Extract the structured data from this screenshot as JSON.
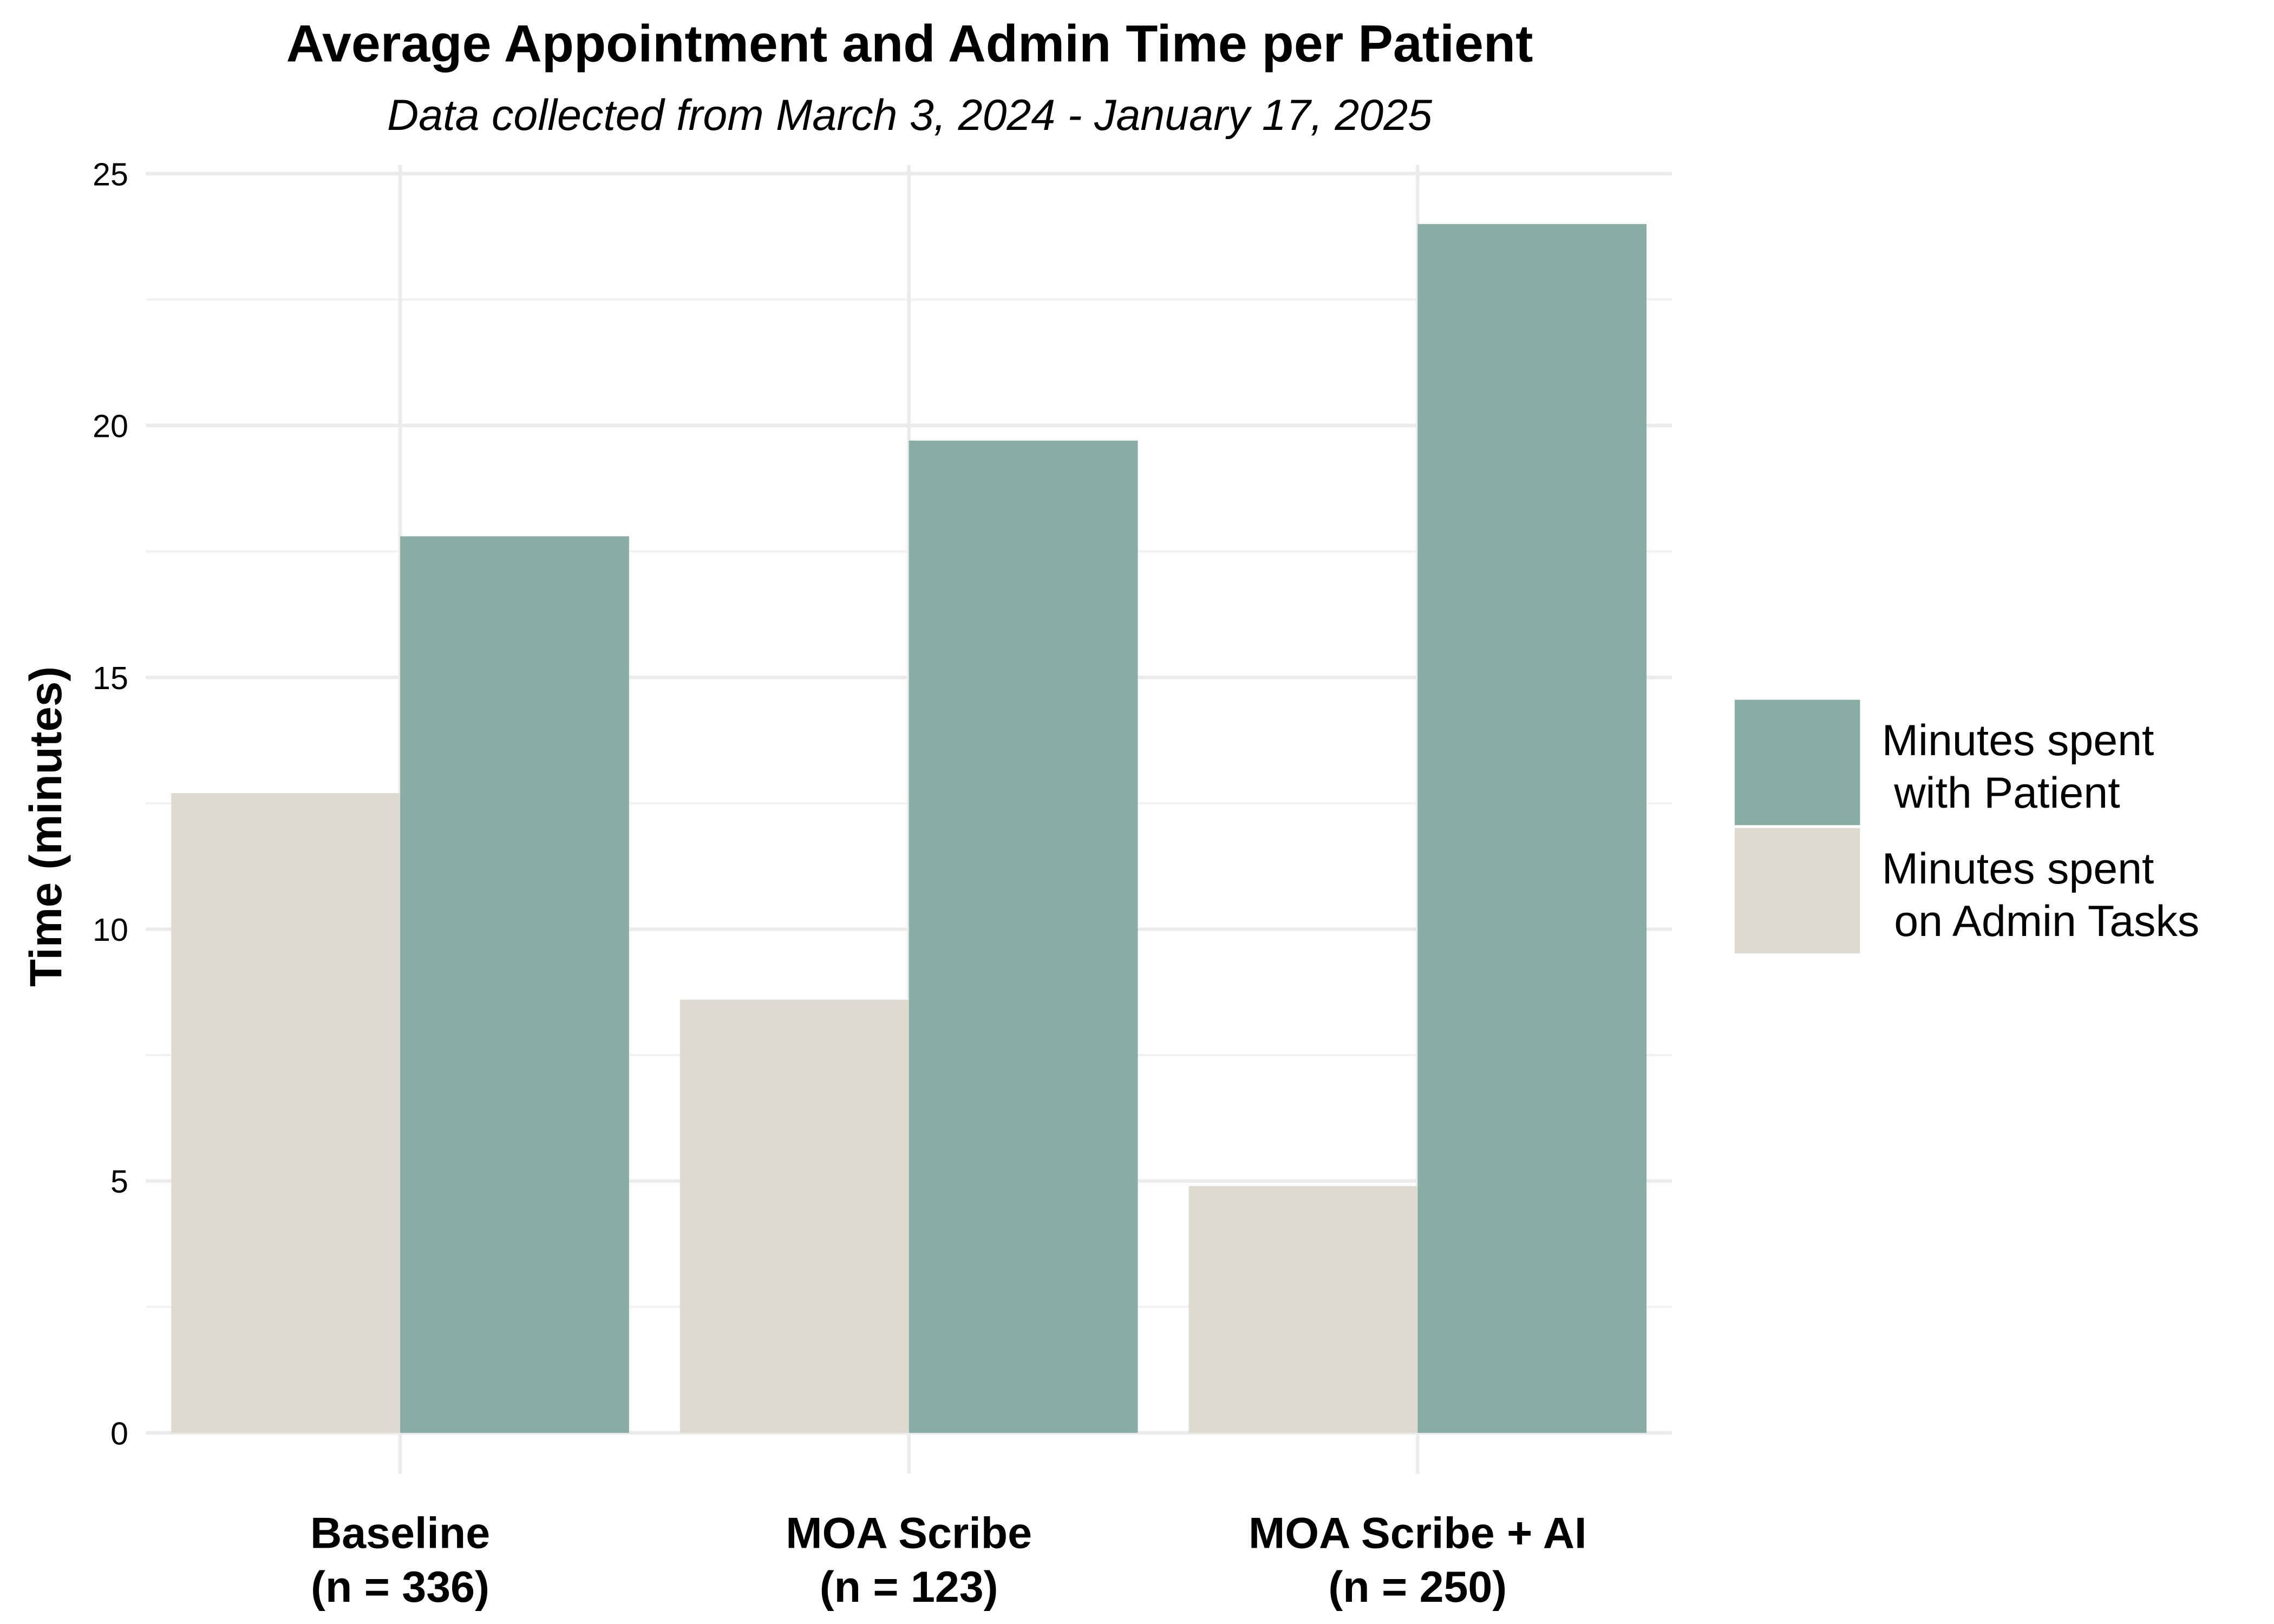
{
  "chart_data": {
    "type": "bar",
    "title": "Average Appointment and Admin Time per Patient",
    "subtitle": "Data collected from March 3, 2024 - January 17, 2025",
    "y_label": "Time (minutes)",
    "categories": [
      "Baseline\n(n = 336)",
      "MOA Scribe\n(n = 123)",
      "MOA Scribe + AI\n(n = 250)"
    ],
    "series": [
      {
        "name": "Minutes spent\n with Patient",
        "color": "#88ada5",
        "values": [
          17.8,
          19.7,
          24.0
        ]
      },
      {
        "name": "Minutes spent\n on Admin Tasks",
        "color": "#dedad0",
        "values": [
          12.7,
          8.6,
          4.9
        ]
      }
    ],
    "ylim": [
      0,
      25
    ],
    "yticks": [
      0,
      5,
      10,
      15,
      20,
      25
    ],
    "yminorticks": [
      2.5,
      7.5,
      12.5,
      17.5,
      22.5
    ],
    "grid": true,
    "legend": "right"
  }
}
